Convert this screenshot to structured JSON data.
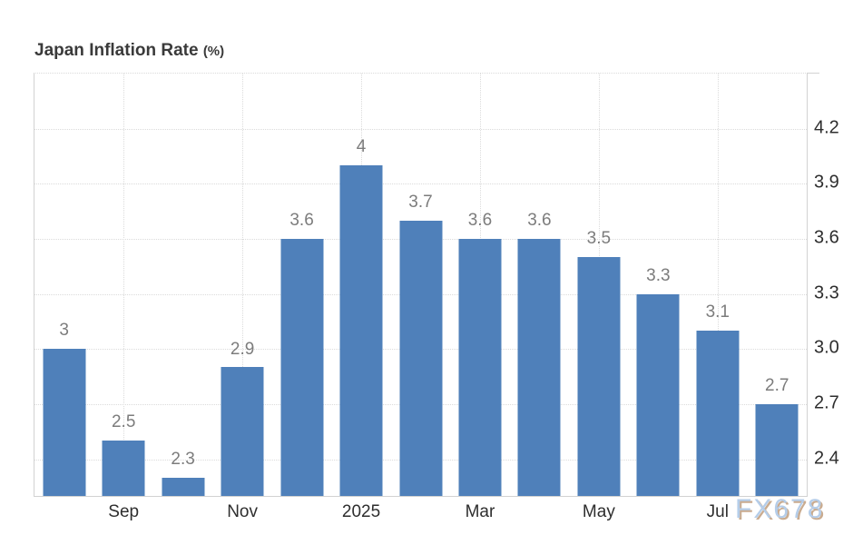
{
  "title": {
    "main": "Japan Inflation Rate",
    "unit": "(%)"
  },
  "watermark": "FX678",
  "colors": {
    "bar": "#4f80ba",
    "grid": "#dbdbdb",
    "axis": "#d2d2d2",
    "title": "#3a3a3a",
    "tick_label": "#2e2e2e",
    "value_label": "#7c7c7c",
    "watermark_fill": "#b5cde9",
    "watermark_shadow": "#c9ab8f"
  },
  "chart_data": {
    "type": "bar",
    "title": "Japan Inflation Rate (%)",
    "values": [
      3,
      2.5,
      2.3,
      2.9,
      3.6,
      4,
      3.7,
      3.6,
      3.6,
      3.5,
      3.3,
      3.1,
      2.7
    ],
    "bar_labels": [
      "3",
      "2.5",
      "2.3",
      "2.9",
      "3.6",
      "4",
      "3.7",
      "3.6",
      "3.6",
      "3.5",
      "3.3",
      "3.1",
      "2.7"
    ],
    "x_ticks": [
      {
        "label": "Sep",
        "bar_index": 1
      },
      {
        "label": "Nov",
        "bar_index": 3
      },
      {
        "label": "2025",
        "bar_index": 5
      },
      {
        "label": "Mar",
        "bar_index": 7
      },
      {
        "label": "May",
        "bar_index": 9
      },
      {
        "label": "Jul",
        "bar_index": 11
      }
    ],
    "y_ticks": [
      {
        "value": 4.2,
        "label": "4.2"
      },
      {
        "value": 3.9,
        "label": "3.9"
      },
      {
        "value": 3.6,
        "label": "3.6"
      },
      {
        "value": 3.3,
        "label": "3.3"
      },
      {
        "value": 3.0,
        "label": "3.0"
      },
      {
        "value": 2.7,
        "label": "2.7"
      },
      {
        "value": 2.4,
        "label": "2.4"
      }
    ],
    "ylim": [
      2.2,
      4.5
    ],
    "grid": "dotted",
    "legend": "none",
    "xlabel": "",
    "ylabel": ""
  }
}
